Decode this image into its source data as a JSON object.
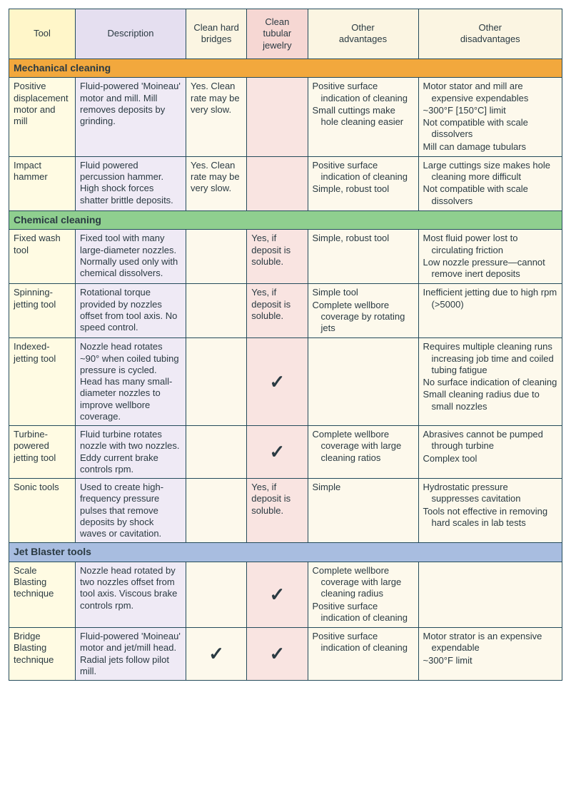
{
  "colors": {
    "border": "#244b5b",
    "text": "#2a3a42",
    "header": {
      "c1": "#fff6c9",
      "c2": "#e5dff0",
      "c3": "#fbf5e2",
      "c4": "#f6d7d3",
      "c5": "#fbf5e2",
      "c6": "#fbf5e2"
    },
    "section": {
      "mechanical": "#f2a83d",
      "chemical": "#8fcf8f",
      "jet": "#a8bde0"
    },
    "body": {
      "c1": "#fffbe3",
      "c2": "#efeaf5",
      "c3": "#fdf9ec",
      "c4": "#f9e4e1",
      "c5": "#fdf9ec",
      "c6": "#fdf9ec"
    }
  },
  "col_widths": [
    "12%",
    "20%",
    "11%",
    "11%",
    "20%",
    "26%"
  ],
  "headers": [
    "Tool",
    "Description",
    "Clean hard bridges",
    "Clean tubular jewelry",
    "Other\nadvantages",
    "Other\ndisadvantages"
  ],
  "sections": [
    {
      "title": "Mechanical cleaning",
      "color_key": "mechanical",
      "rows": [
        {
          "tool": "Positive displacement motor and mill",
          "desc": "Fluid-powered 'Moineau' motor and mill. Mill removes deposits by grinding.",
          "hard": "Yes. Clean rate may be very slow.",
          "tubular": "",
          "adv": [
            "Positive surface indication of cleaning",
            "Small cuttings make hole cleaning easier"
          ],
          "dis": [
            "Motor stator and mill are expensive expendables",
            "~300°F [150°C] limit",
            "Not compatible with scale dissolvers",
            "Mill can damage tubulars"
          ]
        },
        {
          "tool": "Impact hammer",
          "desc": "Fluid powered percussion hammer. High shock forces shatter brittle deposits.",
          "hard": "Yes. Clean rate may be very slow.",
          "tubular": "",
          "adv": [
            "Positive surface indication of cleaning",
            "Simple, robust tool"
          ],
          "dis": [
            "Large cuttings size makes hole cleaning more difficult",
            "Not compatible with scale dissolvers"
          ]
        }
      ]
    },
    {
      "title": "Chemical cleaning",
      "color_key": "chemical",
      "rows": [
        {
          "tool": "Fixed wash tool",
          "desc": "Fixed tool with many large-diameter nozzles. Normally used only with chemical dissolvers.",
          "hard": "",
          "tubular": "Yes, if deposit is soluble.",
          "adv": [
            "Simple, robust tool"
          ],
          "dis": [
            "Most fluid power lost to circulating friction",
            "Low nozzle pressure—cannot remove inert deposits"
          ]
        },
        {
          "tool": "Spinning-jetting tool",
          "desc": "Rotational torque provided by nozzles offset from tool axis. No speed control.",
          "hard": "",
          "tubular": "Yes, if deposit is soluble.",
          "adv": [
            "Simple tool",
            "Complete wellbore coverage by rotating jets"
          ],
          "dis": [
            "Inefficient jetting due to high rpm (>5000)"
          ]
        },
        {
          "tool": "Indexed-jetting tool",
          "desc": "Nozzle head rotates ~90° when coiled tubing pressure is cycled. Head has many small-diameter nozzles to improve wellbore coverage.",
          "hard": "",
          "tubular": "✓",
          "adv": [],
          "dis": [
            "Requires multiple cleaning runs increasing job time and coiled tubing fatigue",
            "No surface indication of cleaning",
            "Small cleaning radius due to small nozzles"
          ]
        },
        {
          "tool": "Turbine-powered jetting tool",
          "desc": "Fluid turbine rotates nozzle with two nozzles. Eddy current brake controls rpm.",
          "hard": "",
          "tubular": "✓",
          "adv": [
            "Complete wellbore coverage with large cleaning ratios"
          ],
          "dis": [
            "Abrasives cannot be pumped through turbine",
            "Complex tool"
          ]
        },
        {
          "tool": "Sonic tools",
          "desc": "Used to create high-frequency pressure pulses that remove deposits by shock waves or cavitation.",
          "hard": "",
          "tubular": "Yes, if deposit is soluble.",
          "adv": [
            "Simple"
          ],
          "dis": [
            "Hydrostatic pressure suppresses cavitation",
            "Tools not effective in removing hard scales in lab tests"
          ]
        }
      ]
    },
    {
      "title": "Jet Blaster tools",
      "color_key": "jet",
      "rows": [
        {
          "tool": "Scale Blasting technique",
          "desc": "Nozzle head rotated by two nozzles offset from tool axis. Viscous brake controls rpm.",
          "hard": "",
          "tubular": "✓",
          "adv": [
            "Complete wellbore coverage with large cleaning radius",
            "Positive surface indication of cleaning"
          ],
          "dis": []
        },
        {
          "tool": "Bridge Blasting technique",
          "desc": "Fluid-powered 'Moineau' motor and jet/mill head. Radial jets follow pilot mill.",
          "hard": "✓",
          "tubular": "✓",
          "adv": [
            "Positive surface indication of cleaning"
          ],
          "dis": [
            "Motor strator is an expensive expendable",
            "~300°F limit"
          ]
        }
      ]
    }
  ]
}
